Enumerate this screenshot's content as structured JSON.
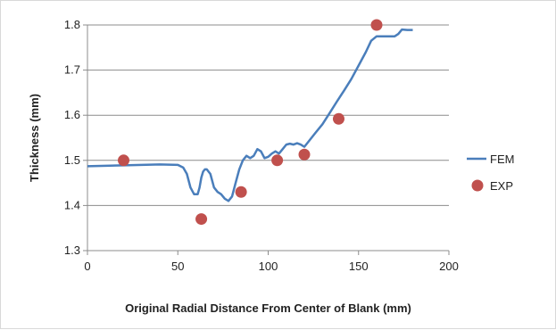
{
  "chart_data": {
    "type": "line",
    "xlabel": "Original Radial Distance From Center of Blank (mm)",
    "ylabel": "Thickness (mm)",
    "xlim": [
      0,
      200
    ],
    "ylim": [
      1.3,
      1.8
    ],
    "xticks": [
      "0",
      "50",
      "100",
      "150",
      "200"
    ],
    "yticks": [
      "1.3",
      "1.4",
      "1.5",
      "1.6",
      "1.7",
      "1.8"
    ],
    "grid": "horizontal",
    "legend_position": "right",
    "series": [
      {
        "name": "FEM",
        "kind": "line",
        "color": "#4a7ebb",
        "x": [
          0,
          10,
          20,
          30,
          40,
          50,
          53,
          55,
          57,
          59,
          61,
          62,
          63,
          64,
          65,
          66,
          68,
          70,
          72,
          74,
          76,
          78,
          80,
          82,
          84,
          86,
          88,
          90,
          92,
          94,
          96,
          98,
          100,
          102,
          104,
          106,
          108,
          110,
          112,
          114,
          116,
          118,
          120,
          122,
          126,
          130,
          134,
          138,
          142,
          146,
          150,
          154,
          157,
          160,
          163,
          166,
          170,
          172,
          174,
          177,
          180
        ],
        "y": [
          1.487,
          1.488,
          1.489,
          1.49,
          1.491,
          1.49,
          1.484,
          1.47,
          1.44,
          1.425,
          1.425,
          1.44,
          1.462,
          1.475,
          1.48,
          1.48,
          1.47,
          1.44,
          1.43,
          1.425,
          1.415,
          1.41,
          1.42,
          1.45,
          1.48,
          1.5,
          1.51,
          1.505,
          1.51,
          1.525,
          1.52,
          1.505,
          1.508,
          1.515,
          1.52,
          1.515,
          1.525,
          1.535,
          1.537,
          1.535,
          1.538,
          1.535,
          1.53,
          1.54,
          1.56,
          1.58,
          1.605,
          1.63,
          1.655,
          1.68,
          1.71,
          1.74,
          1.765,
          1.775,
          1.775,
          1.775,
          1.775,
          1.78,
          1.79,
          1.789,
          1.789
        ]
      },
      {
        "name": "EXP",
        "kind": "scatter",
        "color": "#c0504d",
        "x": [
          20,
          63,
          85,
          105,
          120,
          139,
          160
        ],
        "y": [
          1.5,
          1.37,
          1.43,
          1.5,
          1.513,
          1.592,
          1.8
        ]
      }
    ]
  }
}
